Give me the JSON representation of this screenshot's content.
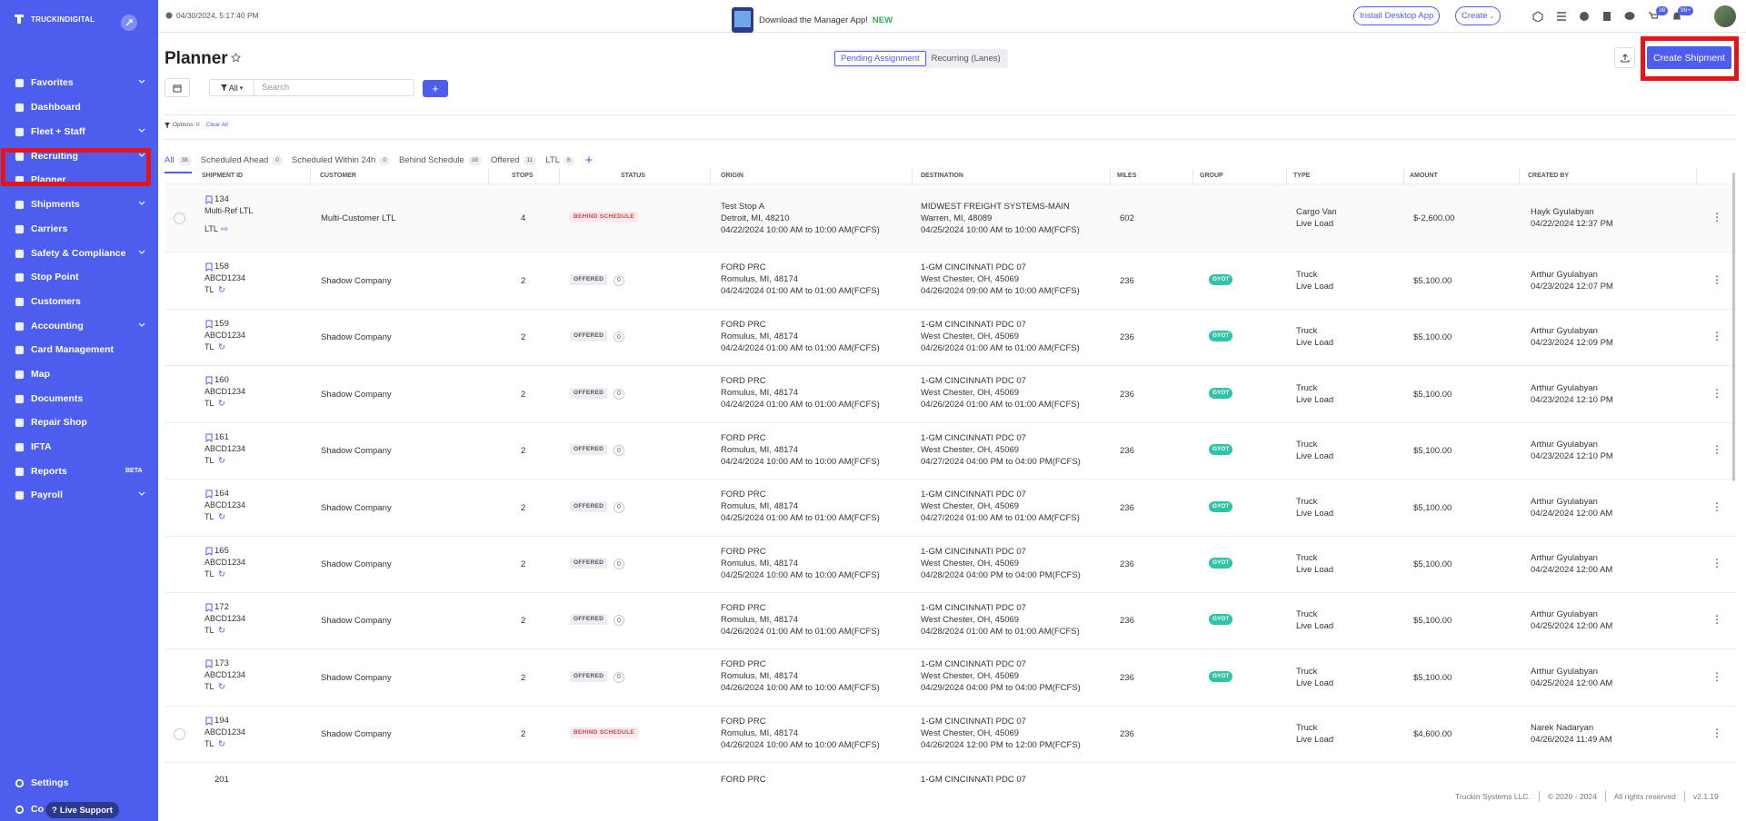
{
  "sidebar": {
    "logo_text": "TRUCKINDIGITAL",
    "items": [
      {
        "label": "Favorites",
        "icon": "star-icon",
        "chevron": true
      },
      {
        "label": "Dashboard",
        "icon": "dashboard-icon"
      },
      {
        "label": "Fleet + Staff",
        "icon": "fleet-icon",
        "chevron": true
      },
      {
        "label": "Recruiting",
        "icon": "recruiting-icon",
        "chevron": true
      },
      {
        "label": "Planner",
        "icon": "planner-icon"
      },
      {
        "label": "Shipments",
        "icon": "truck-icon",
        "chevron": true
      },
      {
        "label": "Carriers",
        "icon": "carriers-icon"
      },
      {
        "label": "Safety & Compliance",
        "icon": "shield-icon",
        "chevron": true
      },
      {
        "label": "Stop Point",
        "icon": "pin-icon"
      },
      {
        "label": "Customers",
        "icon": "customers-icon"
      },
      {
        "label": "Accounting",
        "icon": "accounting-icon",
        "chevron": true
      },
      {
        "label": "Card Management",
        "icon": "card-icon"
      },
      {
        "label": "Map",
        "icon": "map-icon"
      },
      {
        "label": "Documents",
        "icon": "documents-icon"
      },
      {
        "label": "Repair Shop",
        "icon": "wrench-icon"
      },
      {
        "label": "IFTA",
        "icon": "ifta-icon"
      },
      {
        "label": "Reports",
        "icon": "reports-icon",
        "badge": "BETA"
      },
      {
        "label": "Payroll",
        "icon": "payroll-icon",
        "chevron": true
      }
    ],
    "settings_label": "Settings",
    "co_label": "Co",
    "live_support": "Live Support"
  },
  "header": {
    "datetime": "04/30/2024, 5:17:40 PM",
    "download_text": "Download the Manager App!",
    "download_new": "NEW",
    "install_btn": "Install Desktop App",
    "create_btn": "Create",
    "badge_cart": "38",
    "badge_bell": "99+"
  },
  "page": {
    "title": "Planner",
    "seg_pending": "Pending Assignment",
    "seg_recurring": "Recurring (Lanes)",
    "create_shipment": "Create Shipment",
    "filter_label": "All",
    "search_placeholder": "Search",
    "options_label": "Options: 0",
    "clear_all": "Clear All"
  },
  "tabs": [
    {
      "label": "All",
      "count": "38"
    },
    {
      "label": "Scheduled Ahead",
      "count": "0"
    },
    {
      "label": "Scheduled Within 24h",
      "count": "0"
    },
    {
      "label": "Behind Schedule",
      "count": "38"
    },
    {
      "label": "Offered",
      "count": "11"
    },
    {
      "label": "LTL",
      "count": "6"
    }
  ],
  "columns": [
    "SHIPMENT ID",
    "CUSTOMER",
    "STOPS",
    "STATUS",
    "ORIGIN",
    "DESTINATION",
    "MILES",
    "GROUP",
    "TYPE",
    "AMOUNT",
    "CREATED BY"
  ],
  "rows": [
    {
      "id": "134",
      "ref": "Multi-Ref LTL",
      "mode": "LTL",
      "customer": "Multi-Customer LTL",
      "stops": "4",
      "status": "BEHIND SCHEDULE",
      "offer_count": "",
      "origin_name": "Test Stop A",
      "origin_city": "Detroit, MI, 48210",
      "origin_time": "04/22/2024 10:00 AM to 10:00 AM(FCFS)",
      "dest_name": "MIDWEST FREIGHT SYSTEMS-MAIN",
      "dest_city": "Warren, MI, 48089",
      "dest_time": "04/25/2024 10:00 AM to 10:00 AM(FCFS)",
      "miles": "602",
      "group": "",
      "type1": "Cargo Van",
      "type2": "Live Load",
      "amount": "$-2,600.00",
      "created_by": "Hayk Gyulabyan",
      "created_at": "04/22/2024 12:37 PM"
    },
    {
      "id": "158",
      "ref": "ABCD1234",
      "mode": "TL",
      "customer": "Shadow Company",
      "stops": "2",
      "status": "OFFERED",
      "offer_count": "0",
      "origin_name": "FORD PRC",
      "origin_city": "Romulus, MI, 48174",
      "origin_time": "04/24/2024 01:00 AM to 01:00 AM(FCFS)",
      "dest_name": "1-GM CINCINNATI PDC 07",
      "dest_city": "West Chester, OH, 45069",
      "dest_time": "04/26/2024 09:00 AM to 10:00 AM(FCFS)",
      "miles": "236",
      "group": "GYOT",
      "type1": "Truck",
      "type2": "Live Load",
      "amount": "$5,100.00",
      "created_by": "Arthur Gyulabyan",
      "created_at": "04/23/2024 12:07 PM"
    },
    {
      "id": "159",
      "ref": "ABCD1234",
      "mode": "TL",
      "customer": "Shadow Company",
      "stops": "2",
      "status": "OFFERED",
      "offer_count": "0",
      "origin_name": "FORD PRC",
      "origin_city": "Romulus, MI, 48174",
      "origin_time": "04/24/2024 01:00 AM to 01:00 AM(FCFS)",
      "dest_name": "1-GM CINCINNATI PDC 07",
      "dest_city": "West Chester, OH, 45069",
      "dest_time": "04/26/2024 01:00 AM to 01:00 AM(FCFS)",
      "miles": "236",
      "group": "GYOT",
      "type1": "Truck",
      "type2": "Live Load",
      "amount": "$5,100.00",
      "created_by": "Arthur Gyulabyan",
      "created_at": "04/23/2024 12:09 PM"
    },
    {
      "id": "160",
      "ref": "ABCD1234",
      "mode": "TL",
      "customer": "Shadow Company",
      "stops": "2",
      "status": "OFFERED",
      "offer_count": "0",
      "origin_name": "FORD PRC",
      "origin_city": "Romulus, MI, 48174",
      "origin_time": "04/24/2024 01:00 AM to 01:00 AM(FCFS)",
      "dest_name": "1-GM CINCINNATI PDC 07",
      "dest_city": "West Chester, OH, 45069",
      "dest_time": "04/26/2024 01:00 AM to 01:00 AM(FCFS)",
      "miles": "236",
      "group": "GYOT",
      "type1": "Truck",
      "type2": "Live Load",
      "amount": "$5,100.00",
      "created_by": "Arthur Gyulabyan",
      "created_at": "04/23/2024 12:10 PM"
    },
    {
      "id": "161",
      "ref": "ABCD1234",
      "mode": "TL",
      "customer": "Shadow Company",
      "stops": "2",
      "status": "OFFERED",
      "offer_count": "0",
      "origin_name": "FORD PRC",
      "origin_city": "Romulus, MI, 48174",
      "origin_time": "04/24/2024 10:00 AM to 10:00 AM(FCFS)",
      "dest_name": "1-GM CINCINNATI PDC 07",
      "dest_city": "West Chester, OH, 45069",
      "dest_time": "04/27/2024 04:00 PM to 04:00 PM(FCFS)",
      "miles": "236",
      "group": "GYOT",
      "type1": "Truck",
      "type2": "Live Load",
      "amount": "$5,100.00",
      "created_by": "Arthur Gyulabyan",
      "created_at": "04/23/2024 12:10 PM"
    },
    {
      "id": "164",
      "ref": "ABCD1234",
      "mode": "TL",
      "customer": "Shadow Company",
      "stops": "2",
      "status": "OFFERED",
      "offer_count": "0",
      "origin_name": "FORD PRC",
      "origin_city": "Romulus, MI, 48174",
      "origin_time": "04/25/2024 01:00 AM to 01:00 AM(FCFS)",
      "dest_name": "1-GM CINCINNATI PDC 07",
      "dest_city": "West Chester, OH, 45069",
      "dest_time": "04/27/2024 01:00 AM to 01:00 AM(FCFS)",
      "miles": "236",
      "group": "GYOT",
      "type1": "Truck",
      "type2": "Live Load",
      "amount": "$5,100.00",
      "created_by": "Arthur Gyulabyan",
      "created_at": "04/24/2024 12:00 AM"
    },
    {
      "id": "165",
      "ref": "ABCD1234",
      "mode": "TL",
      "customer": "Shadow Company",
      "stops": "2",
      "status": "OFFERED",
      "offer_count": "0",
      "origin_name": "FORD PRC",
      "origin_city": "Romulus, MI, 48174",
      "origin_time": "04/25/2024 10:00 AM to 10:00 AM(FCFS)",
      "dest_name": "1-GM CINCINNATI PDC 07",
      "dest_city": "West Chester, OH, 45069",
      "dest_time": "04/28/2024 04:00 PM to 04:00 PM(FCFS)",
      "miles": "236",
      "group": "GYOT",
      "type1": "Truck",
      "type2": "Live Load",
      "amount": "$5,100.00",
      "created_by": "Arthur Gyulabyan",
      "created_at": "04/24/2024 12:00 AM"
    },
    {
      "id": "172",
      "ref": "ABCD1234",
      "mode": "TL",
      "customer": "Shadow Company",
      "stops": "2",
      "status": "OFFERED",
      "offer_count": "0",
      "origin_name": "FORD PRC",
      "origin_city": "Romulus, MI, 48174",
      "origin_time": "04/26/2024 01:00 AM to 01:00 AM(FCFS)",
      "dest_name": "1-GM CINCINNATI PDC 07",
      "dest_city": "West Chester, OH, 45069",
      "dest_time": "04/28/2024 01:00 AM to 01:00 AM(FCFS)",
      "miles": "236",
      "group": "GYOT",
      "type1": "Truck",
      "type2": "Live Load",
      "amount": "$5,100.00",
      "created_by": "Arthur Gyulabyan",
      "created_at": "04/25/2024 12:00 AM"
    },
    {
      "id": "173",
      "ref": "ABCD1234",
      "mode": "TL",
      "customer": "Shadow Company",
      "stops": "2",
      "status": "OFFERED",
      "offer_count": "0",
      "origin_name": "FORD PRC",
      "origin_city": "Romulus, MI, 48174",
      "origin_time": "04/26/2024 10:00 AM to 10:00 AM(FCFS)",
      "dest_name": "1-GM CINCINNATI PDC 07",
      "dest_city": "West Chester, OH, 45069",
      "dest_time": "04/29/2024 04:00 PM to 04:00 PM(FCFS)",
      "miles": "236",
      "group": "GYOT",
      "type1": "Truck",
      "type2": "Live Load",
      "amount": "$5,100.00",
      "created_by": "Arthur Gyulabyan",
      "created_at": "04/25/2024 12:00 AM"
    },
    {
      "id": "194",
      "ref": "ABCD1234",
      "mode": "TL",
      "customer": "Shadow Company",
      "stops": "2",
      "status": "BEHIND SCHEDULE",
      "offer_count": "",
      "origin_name": "FORD PRC",
      "origin_city": "Romulus, MI, 48174",
      "origin_time": "04/26/2024 10:00 AM to 10:00 AM(FCFS)",
      "dest_name": "1-GM CINCINNATI PDC 07",
      "dest_city": "West Chester, OH, 45069",
      "dest_time": "04/26/2024 12:00 PM to 12:00 PM(FCFS)",
      "miles": "236",
      "group": "",
      "type1": "Truck",
      "type2": "Live Load",
      "amount": "$4,600.00",
      "created_by": "Narek Nadaryan",
      "created_at": "04/26/2024 11:49 AM"
    }
  ],
  "partial_row": {
    "id": "201",
    "origin_name": "FORD PRC",
    "dest_name": "1-GM CINCINNATI PDC 07"
  },
  "footer": {
    "company": "Truckin Systems LLC.",
    "copyright": "© 2020 - 2024",
    "rights": "All rights reserved",
    "version": "v2.1.19"
  },
  "colors": {
    "accent": "#4d5ded",
    "highlight": "#e4141c",
    "behind": "#d9434f",
    "group": "#2ec4a6"
  }
}
